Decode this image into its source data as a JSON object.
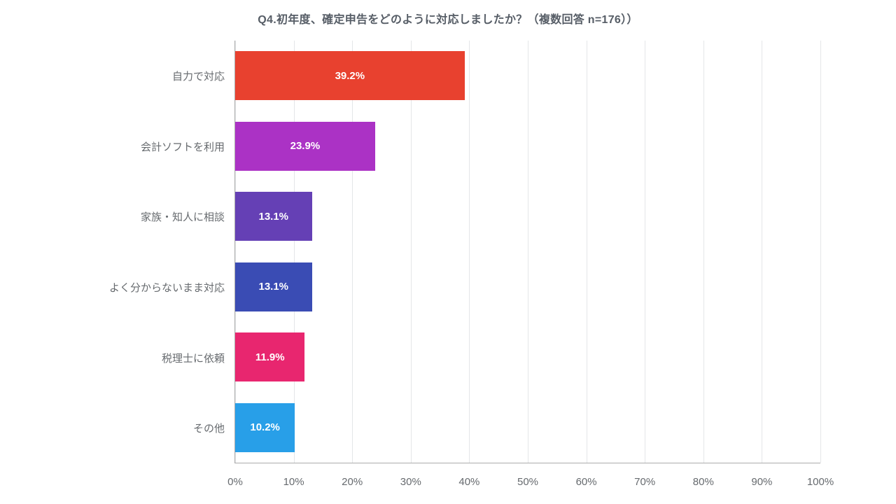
{
  "title": "Q4.初年度、確定申告をどのように対応しましたか？（複数回答 n=176））",
  "chart_data": {
    "type": "bar",
    "orientation": "horizontal",
    "title": "Q4.初年度、確定申告をどのように対応しましたか？（複数回答 n=176））",
    "categories": [
      "自力で対応",
      "会計ソフトを利用",
      "家族・知人に相談",
      "よく分からないまま対応",
      "税理士に依頼",
      "その他"
    ],
    "values": [
      39.2,
      23.9,
      13.1,
      13.1,
      11.9,
      10.2
    ],
    "value_labels": [
      "39.2%",
      "23.9%",
      "13.1%",
      "13.1%",
      "11.9%",
      "10.2%"
    ],
    "bar_colors": [
      "#e8412f",
      "#ab32c5",
      "#6540b5",
      "#3a4cb4",
      "#e8266f",
      "#289fe8"
    ],
    "xlim": [
      0,
      100
    ],
    "x_ticks": [
      0,
      10,
      20,
      30,
      40,
      50,
      60,
      70,
      80,
      90,
      100
    ],
    "x_tick_labels": [
      "0%",
      "10%",
      "20%",
      "30%",
      "40%",
      "50%",
      "60%",
      "70%",
      "80%",
      "90%",
      "100%"
    ],
    "grid": true,
    "legend": "none",
    "xlabel": "",
    "ylabel": ""
  },
  "colors": {
    "background": "#ffffff",
    "title_text": "#565d66",
    "axis_line": "#ababab",
    "gridline": "#e4e6e8",
    "label_text": "#666a6e",
    "bar_value_text": "#ffffff"
  }
}
